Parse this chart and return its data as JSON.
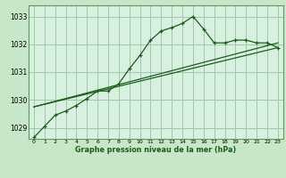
{
  "background_color": "#c8e6c8",
  "plot_bg_color": "#d8f0e0",
  "grid_color": "#a0c8a8",
  "line_color_main": "#1a5c1a",
  "title": "Graphe pression niveau de la mer (hPa)",
  "xlim": [
    -0.5,
    23.5
  ],
  "ylim": [
    1028.6,
    1033.4
  ],
  "yticks": [
    1029,
    1030,
    1031,
    1032,
    1033
  ],
  "xticks": [
    0,
    1,
    2,
    3,
    4,
    5,
    6,
    7,
    8,
    9,
    10,
    11,
    12,
    13,
    14,
    15,
    16,
    17,
    18,
    19,
    20,
    21,
    22,
    23
  ],
  "series1_x": [
    0,
    1,
    2,
    3,
    4,
    5,
    6,
    7,
    8,
    9,
    10,
    11,
    12,
    13,
    14,
    15,
    16,
    17,
    18,
    19,
    20,
    21,
    22,
    23
  ],
  "series1_y": [
    1028.65,
    1029.05,
    1029.45,
    1029.6,
    1029.8,
    1030.05,
    1030.32,
    1030.32,
    1030.58,
    1031.12,
    1031.6,
    1032.15,
    1032.48,
    1032.6,
    1032.75,
    1033.0,
    1032.55,
    1032.05,
    1032.05,
    1032.15,
    1032.15,
    1032.05,
    1032.05,
    1031.88
  ],
  "series2_x": [
    0,
    23
  ],
  "series2_y": [
    1029.75,
    1032.05
  ],
  "series3_x": [
    0,
    23
  ],
  "series3_y": [
    1029.75,
    1031.88
  ]
}
